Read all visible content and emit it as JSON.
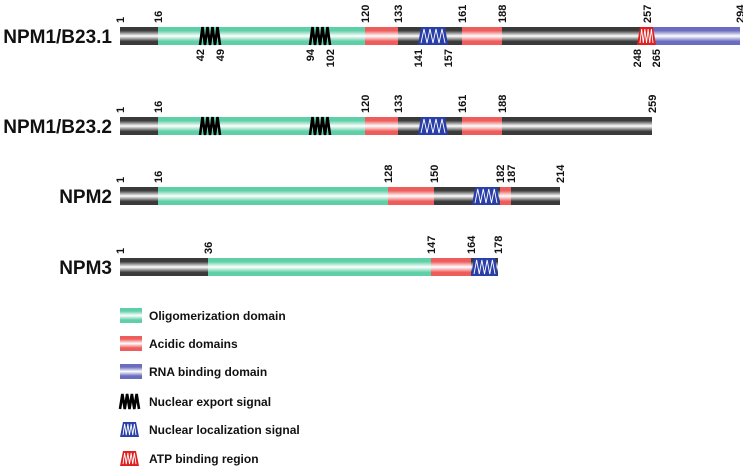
{
  "colors": {
    "oligomerization": "#5fcfa8",
    "acidic": "#ee5c5c",
    "rna_binding": "#6a6cc0",
    "backbone": "#3a3a3a",
    "nes": "#000000",
    "nls": "#2a3ea8",
    "atp": "#e02020"
  },
  "proteins": [
    {
      "name": "NPM1/B23.1",
      "length": 294,
      "domains": [
        {
          "type": "oligomerization",
          "start": 16,
          "end": 120
        },
        {
          "type": "acidic",
          "start": 120,
          "end": 133
        },
        {
          "type": "acidic",
          "start": 161,
          "end": 188
        },
        {
          "type": "rna_binding",
          "start": 257,
          "end": 294
        }
      ],
      "motifs": [
        {
          "type": "nes",
          "start": 42,
          "end": 49
        },
        {
          "type": "nes",
          "start": 94,
          "end": 102
        },
        {
          "type": "nls",
          "start": 141,
          "end": 157
        },
        {
          "type": "atp",
          "start": 248,
          "end": 265
        }
      ],
      "top_labels": [
        "1",
        "16",
        "120",
        "133",
        "161",
        "188",
        "257",
        "294"
      ],
      "bottom_labels": [
        "42",
        "49",
        "94",
        "102",
        "141",
        "157",
        "248",
        "265"
      ]
    },
    {
      "name": "NPM1/B23.2",
      "length": 259,
      "domains": [
        {
          "type": "oligomerization",
          "start": 16,
          "end": 120
        },
        {
          "type": "acidic",
          "start": 120,
          "end": 133
        },
        {
          "type": "acidic",
          "start": 161,
          "end": 188
        }
      ],
      "motifs": [
        {
          "type": "nes",
          "start": 42,
          "end": 49
        },
        {
          "type": "nes",
          "start": 94,
          "end": 102
        },
        {
          "type": "nls",
          "start": 141,
          "end": 157
        }
      ],
      "top_labels": [
        "1",
        "16",
        "120",
        "133",
        "161",
        "188",
        "259"
      ],
      "bottom_labels": []
    },
    {
      "name": "NPM2",
      "length": 214,
      "domains": [
        {
          "type": "oligomerization",
          "start": 16,
          "end": 128
        },
        {
          "type": "acidic",
          "start": 128,
          "end": 150
        },
        {
          "type": "acidic",
          "start": 182,
          "end": 187
        }
      ],
      "motifs": [
        {
          "type": "nls",
          "start": 167,
          "end": 182
        }
      ],
      "top_labels": [
        "1",
        "16",
        "128",
        "150",
        "182",
        "187",
        "214"
      ],
      "bottom_labels": []
    },
    {
      "name": "NPM3",
      "length": 178,
      "domains": [
        {
          "type": "oligomerization",
          "start": 36,
          "end": 147
        },
        {
          "type": "acidic",
          "start": 147,
          "end": 164
        }
      ],
      "motifs": [
        {
          "type": "nls",
          "start": 164,
          "end": 178
        }
      ],
      "top_labels": [
        "1",
        "36",
        "147",
        "164",
        "178"
      ],
      "bottom_labels": []
    }
  ],
  "legend": [
    {
      "type": "oligomerization",
      "label": "Oligomerization domain",
      "kind": "bar"
    },
    {
      "type": "acidic",
      "label": "Acidic domains",
      "kind": "bar"
    },
    {
      "type": "rna_binding",
      "label": "RNA binding domain",
      "kind": "bar"
    },
    {
      "type": "nes",
      "label": "Nuclear export signal",
      "kind": "motif"
    },
    {
      "type": "nls",
      "label": "Nuclear localization signal",
      "kind": "motif"
    },
    {
      "type": "atp",
      "label": "ATP binding region",
      "kind": "motif"
    }
  ]
}
